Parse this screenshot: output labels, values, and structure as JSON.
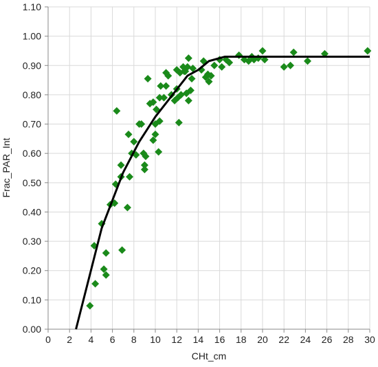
{
  "chart_data": {
    "type": "scatter",
    "xlabel": "CHt_cm",
    "ylabel": "Frac_PAR_Int",
    "xlim": [
      0,
      30
    ],
    "ylim": [
      0,
      1.1
    ],
    "x_ticks": [
      "0",
      "2",
      "4",
      "6",
      "8",
      "10",
      "12",
      "14",
      "16",
      "18",
      "20",
      "22",
      "24",
      "26",
      "28",
      "30"
    ],
    "y_ticks": [
      "0.00",
      "0.10",
      "0.20",
      "0.30",
      "0.40",
      "0.50",
      "0.60",
      "0.70",
      "0.80",
      "0.90",
      "1.00",
      "1.10"
    ],
    "grid": true,
    "legend": "none",
    "series": [
      {
        "kind": "points",
        "marker": "diamond",
        "color": "#1a8a1a",
        "points": [
          [
            3.9,
            0.08
          ],
          [
            4.3,
            0.285
          ],
          [
            4.4,
            0.155
          ],
          [
            5.0,
            0.36
          ],
          [
            5.2,
            0.205
          ],
          [
            5.4,
            0.26
          ],
          [
            5.4,
            0.185
          ],
          [
            5.8,
            0.425
          ],
          [
            6.2,
            0.43
          ],
          [
            6.3,
            0.495
          ],
          [
            6.4,
            0.745
          ],
          [
            6.8,
            0.52
          ],
          [
            6.8,
            0.56
          ],
          [
            6.9,
            0.27
          ],
          [
            7.4,
            0.415
          ],
          [
            7.5,
            0.665
          ],
          [
            7.6,
            0.52
          ],
          [
            7.8,
            0.6
          ],
          [
            8.0,
            0.64
          ],
          [
            8.2,
            0.595
          ],
          [
            8.5,
            0.7
          ],
          [
            8.7,
            0.7
          ],
          [
            8.9,
            0.6
          ],
          [
            9.0,
            0.545
          ],
          [
            9.0,
            0.56
          ],
          [
            9.1,
            0.59
          ],
          [
            9.3,
            0.855
          ],
          [
            9.5,
            0.77
          ],
          [
            9.8,
            0.775
          ],
          [
            9.8,
            0.645
          ],
          [
            10.0,
            0.665
          ],
          [
            10.0,
            0.7
          ],
          [
            10.1,
            0.75
          ],
          [
            10.3,
            0.605
          ],
          [
            10.4,
            0.71
          ],
          [
            10.4,
            0.79
          ],
          [
            10.5,
            0.83
          ],
          [
            10.8,
            0.79
          ],
          [
            11.0,
            0.83
          ],
          [
            11.0,
            0.875
          ],
          [
            11.2,
            0.865
          ],
          [
            11.5,
            0.8
          ],
          [
            11.8,
            0.78
          ],
          [
            12.0,
            0.82
          ],
          [
            12.0,
            0.885
          ],
          [
            12.1,
            0.79
          ],
          [
            12.2,
            0.705
          ],
          [
            12.3,
            0.875
          ],
          [
            12.4,
            0.8
          ],
          [
            12.6,
            0.895
          ],
          [
            12.7,
            0.88
          ],
          [
            12.8,
            0.88
          ],
          [
            12.9,
            0.805
          ],
          [
            13.0,
            0.895
          ],
          [
            13.1,
            0.78
          ],
          [
            13.1,
            0.925
          ],
          [
            13.3,
            0.815
          ],
          [
            13.4,
            0.855
          ],
          [
            13.5,
            0.89
          ],
          [
            14.3,
            0.885
          ],
          [
            14.5,
            0.915
          ],
          [
            14.7,
            0.86
          ],
          [
            14.9,
            0.87
          ],
          [
            15.0,
            0.845
          ],
          [
            15.2,
            0.865
          ],
          [
            15.5,
            0.9
          ],
          [
            16.0,
            0.92
          ],
          [
            16.2,
            0.895
          ],
          [
            16.6,
            0.92
          ],
          [
            16.9,
            0.91
          ],
          [
            17.8,
            0.935
          ],
          [
            18.3,
            0.92
          ],
          [
            18.7,
            0.915
          ],
          [
            19.0,
            0.93
          ],
          [
            19.2,
            0.92
          ],
          [
            19.6,
            0.925
          ],
          [
            20.0,
            0.95
          ],
          [
            20.2,
            0.92
          ],
          [
            22.0,
            0.895
          ],
          [
            22.6,
            0.9
          ],
          [
            22.9,
            0.945
          ],
          [
            24.2,
            0.915
          ],
          [
            25.8,
            0.94
          ],
          [
            29.8,
            0.95
          ]
        ]
      },
      {
        "kind": "line",
        "color": "#000000",
        "points": [
          [
            2.6,
            0.0
          ],
          [
            5.0,
            0.345
          ],
          [
            7.0,
            0.535
          ],
          [
            8.5,
            0.64
          ],
          [
            10.0,
            0.725
          ],
          [
            11.5,
            0.795
          ],
          [
            13.0,
            0.865
          ],
          [
            14.0,
            0.885
          ],
          [
            15.0,
            0.915
          ],
          [
            16.5,
            0.93
          ],
          [
            30.0,
            0.93
          ]
        ]
      }
    ]
  }
}
